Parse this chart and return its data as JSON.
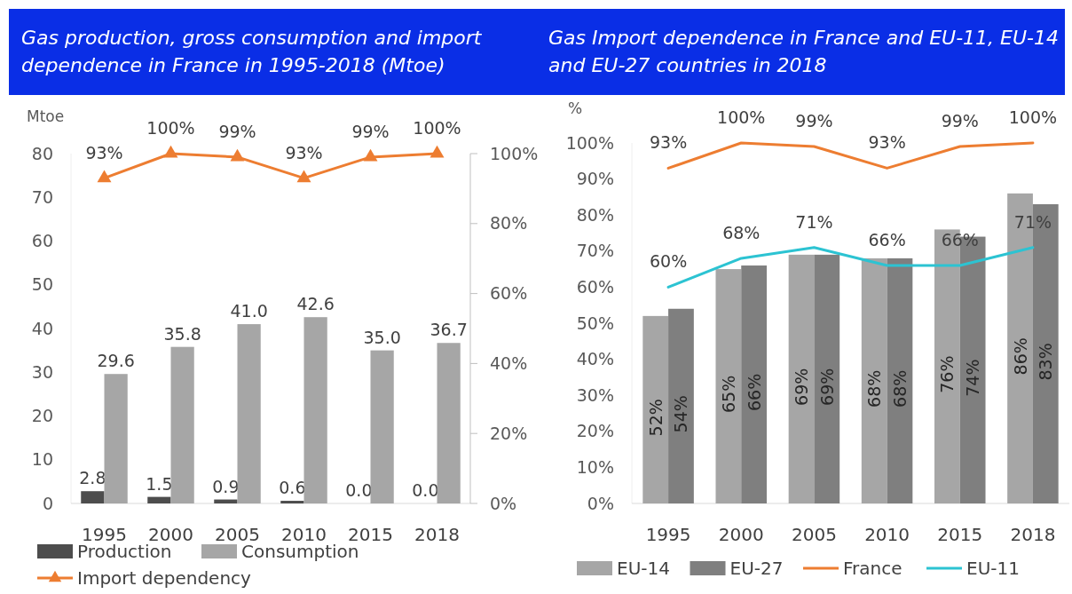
{
  "chart_data": [
    {
      "type": "bar",
      "title": "Gas production, gross consumption and import dependence in France in 1995-2018 (Mtoe)",
      "ylabel": "Mtoe",
      "categories": [
        "1995",
        "2000",
        "2005",
        "2010",
        "2015",
        "2018"
      ],
      "ylim": [
        0,
        80
      ],
      "yticks": [
        0,
        10,
        20,
        30,
        40,
        50,
        60,
        70,
        80
      ],
      "y2lim": [
        0,
        100
      ],
      "y2ticks": [
        {
          "value": 0,
          "label": "0%"
        },
        {
          "value": 20,
          "label": "20%"
        },
        {
          "value": 40,
          "label": "40%"
        },
        {
          "value": 60,
          "label": "60%"
        },
        {
          "value": 80,
          "label": "80%"
        },
        {
          "value": 100,
          "label": "100%"
        }
      ],
      "series": [
        {
          "name": "Production",
          "color": "#4d4d4d",
          "values": [
            2.8,
            1.5,
            0.9,
            0.6,
            0.0,
            0.0
          ],
          "value_labels": [
            "2.8",
            "1.5",
            "0.9",
            "0.6",
            "0.0",
            "0.0"
          ]
        },
        {
          "name": "Consumption",
          "color": "#a6a6a6",
          "values": [
            29.6,
            35.8,
            41.0,
            42.6,
            35.0,
            36.7
          ],
          "value_labels": [
            "29.6",
            "35.8",
            "41.0",
            "42.6",
            "35.0",
            "36.7"
          ]
        },
        {
          "name": "Import dependency",
          "type": "line",
          "axis": "y2",
          "marker": "triangle",
          "color": "#ed7d31",
          "values": [
            93,
            100,
            99,
            93,
            99,
            100
          ],
          "value_labels": [
            "93%",
            "100%",
            "99%",
            "93%",
            "99%",
            "100%"
          ]
        }
      ],
      "legend": "bottom"
    },
    {
      "type": "bar",
      "title": "Gas Import dependence in France and EU-11, EU-14 and EU-27 countries in 2018",
      "ylabel": "%",
      "categories": [
        "1995",
        "2000",
        "2005",
        "2010",
        "2015",
        "2018"
      ],
      "ylim": [
        0,
        100
      ],
      "yticks": [
        {
          "value": 0,
          "label": "0%"
        },
        {
          "value": 10,
          "label": "10%"
        },
        {
          "value": 20,
          "label": "20%"
        },
        {
          "value": 30,
          "label": "30%"
        },
        {
          "value": 40,
          "label": "40%"
        },
        {
          "value": 50,
          "label": "50%"
        },
        {
          "value": 60,
          "label": "60%"
        },
        {
          "value": 70,
          "label": "70%"
        },
        {
          "value": 80,
          "label": "80%"
        },
        {
          "value": 90,
          "label": "90%"
        },
        {
          "value": 100,
          "label": "100%"
        }
      ],
      "series": [
        {
          "name": "EU-14",
          "color": "#a6a6a6",
          "values": [
            52,
            65,
            69,
            68,
            76,
            86
          ],
          "value_labels": [
            "52%",
            "65%",
            "69%",
            "68%",
            "76%",
            "86%"
          ]
        },
        {
          "name": "EU-27",
          "color": "#7f7f7f",
          "values": [
            54,
            66,
            69,
            68,
            74,
            83
          ],
          "value_labels": [
            "54%",
            "66%",
            "69%",
            "68%",
            "74%",
            "83%"
          ]
        },
        {
          "name": "France",
          "type": "line",
          "color": "#ed7d31",
          "values": [
            93,
            100,
            99,
            93,
            99,
            100
          ],
          "value_labels": [
            "93%",
            "100%",
            "99%",
            "93%",
            "99%",
            "100%"
          ]
        },
        {
          "name": "EU-11",
          "type": "line",
          "color": "#2cc3d2",
          "values": [
            60,
            68,
            71,
            66,
            66,
            71
          ],
          "value_labels": [
            "60%",
            "68%",
            "71%",
            "66%",
            "66%",
            "71%"
          ]
        }
      ],
      "legend": "bottom"
    }
  ]
}
